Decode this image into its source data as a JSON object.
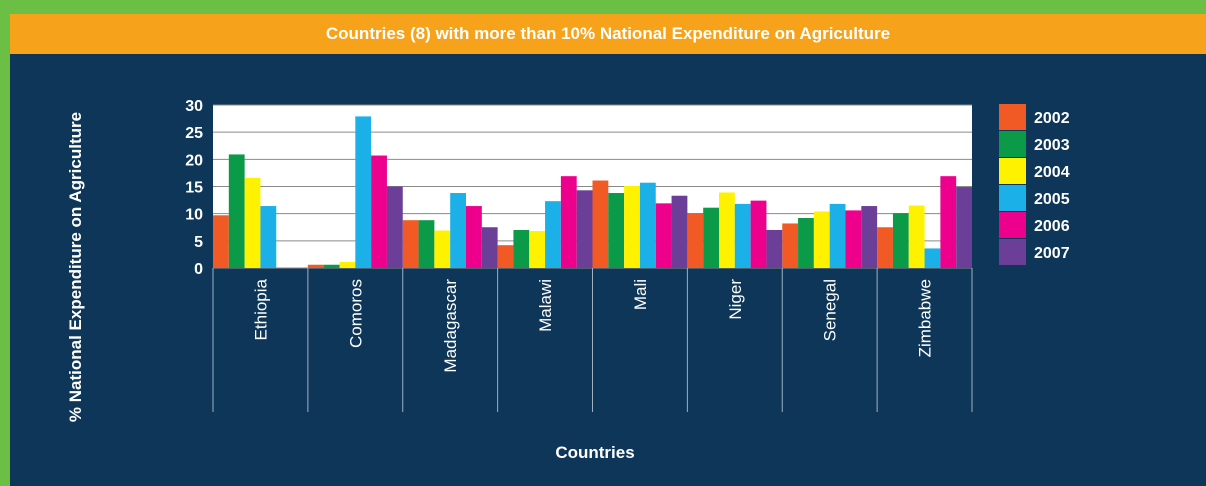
{
  "chart_data": {
    "type": "bar",
    "title": "Countries (8) with more than 10% National Expenditure on Agriculture",
    "xlabel": "Countries",
    "ylabel": "% National Expenditure on Agriculture",
    "ylim": [
      0,
      30
    ],
    "yticks": [
      "30",
      "25",
      "20",
      "15",
      "10",
      "5",
      "0"
    ],
    "grid": true,
    "legend": "right",
    "categories": [
      "Ethiopia",
      "Comoros",
      "Madagascar",
      "Malawi",
      "Mali",
      "Niger",
      "Senegal",
      "Zimbabwe"
    ],
    "series": [
      {
        "name": "2002",
        "color": "#f15a24",
        "values": [
          9.7,
          0.6,
          8.8,
          4.2,
          16.1,
          10.1,
          8.2,
          7.5
        ]
      },
      {
        "name": "2003",
        "color": "#0a9a48",
        "values": [
          20.9,
          0.6,
          8.8,
          7.0,
          13.8,
          11.1,
          9.2,
          10.1
        ]
      },
      {
        "name": "2004",
        "color": "#fff200",
        "values": [
          16.6,
          1.1,
          6.9,
          6.8,
          15.1,
          13.9,
          10.4,
          11.5
        ]
      },
      {
        "name": "2005",
        "color": "#1bb0e8",
        "values": [
          11.4,
          27.9,
          13.8,
          12.3,
          15.7,
          11.8,
          11.8,
          3.6
        ]
      },
      {
        "name": "2006",
        "color": "#ec008c",
        "values": [
          0,
          20.7,
          11.4,
          16.9,
          11.9,
          12.4,
          10.6,
          16.9
        ]
      },
      {
        "name": "2007",
        "color": "#6b3f98",
        "values": [
          0,
          15.0,
          7.5,
          14.3,
          13.3,
          7.0,
          11.4,
          14.9
        ]
      }
    ]
  }
}
